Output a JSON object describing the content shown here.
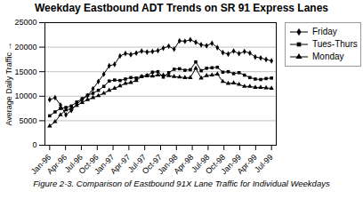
{
  "chart_data": {
    "type": "line",
    "title": "Weekday Eastbound ADT Trends on SR 91 Express Lanes",
    "ylabel": "Average Daily Traffic",
    "caption": "Figure 2-3. Comparison of Eastbound 91X Lane Traffic for Individual Weekdays",
    "x": [
      0,
      0.3414634146,
      0.6829268293,
      1.0243902439,
      1.3658536585,
      1.7073170732,
      2.0487804878,
      2.3902439024,
      2.7317073171,
      3.0731707317,
      3.4146341463,
      3.756097561,
      4.0975609756,
      4.4390243902,
      4.7804878049,
      5.1219512195,
      5.4634146341,
      5.8048780488,
      6.1463414634,
      6.487804878,
      6.8292682927,
      7.1707317073,
      7.512195122,
      7.8536585366,
      8.1951219512,
      8.5365853659,
      8.8780487805,
      9.2195121951,
      9.5609756098,
      9.9024390244,
      10.243902439,
      10.5853658537,
      10.9268292683,
      11.2682926829,
      11.6097560976,
      11.9512195122,
      12.2926829268,
      12.6341463415,
      12.9756097561,
      13.3170731707,
      13.6585365854,
      14
    ],
    "xlim": [
      -0.3,
      14.3
    ],
    "xticks": [
      {
        "value": 0,
        "label": "Jan-96"
      },
      {
        "value": 1,
        "label": "Apr-96"
      },
      {
        "value": 2,
        "label": "Jul-96"
      },
      {
        "value": 3,
        "label": "Oct-96"
      },
      {
        "value": 4,
        "label": "Jan-97"
      },
      {
        "value": 5,
        "label": "Apr-97"
      },
      {
        "value": 6,
        "label": "Jul-97"
      },
      {
        "value": 7,
        "label": "Oct-97"
      },
      {
        "value": 8,
        "label": "Jan-98"
      },
      {
        "value": 9,
        "label": "Apr-98"
      },
      {
        "value": 10,
        "label": "Jul-98"
      },
      {
        "value": 11,
        "label": "Oct-98"
      },
      {
        "value": 12,
        "label": "Jan-99"
      },
      {
        "value": 13,
        "label": "Apr-99"
      },
      {
        "value": 14,
        "label": "Jul-99"
      }
    ],
    "ylim": [
      0,
      25000
    ],
    "yticks": [
      0,
      5000,
      10000,
      15000,
      20000,
      25000
    ],
    "grid": "y",
    "legend": "right",
    "series": [
      {
        "name": "Friday",
        "color": "#000000",
        "marker": "diamond",
        "values": [
          9300,
          9700,
          8200,
          6200,
          7100,
          8400,
          9300,
          10100,
          11500,
          13000,
          14500,
          16200,
          16500,
          18200,
          18700,
          18500,
          18800,
          19200,
          19000,
          19100,
          19300,
          19800,
          20200,
          19600,
          21300,
          21200,
          21500,
          21000,
          20500,
          20300,
          20800,
          19900,
          18900,
          18600,
          19200,
          18700,
          19100,
          18800,
          18000,
          17800,
          17500,
          17200
        ]
      },
      {
        "name": "Tues-Thurs",
        "color": "#000000",
        "marker": "square",
        "values": [
          6000,
          6800,
          7500,
          7700,
          8000,
          8800,
          9500,
          10200,
          10600,
          11200,
          12000,
          13100,
          13300,
          13200,
          13500,
          13800,
          13700,
          14000,
          14200,
          14900,
          15000,
          13900,
          14800,
          15500,
          15600,
          15300,
          15400,
          17000,
          15200,
          15700,
          15800,
          15900,
          14900,
          15000,
          14600,
          14800,
          14300,
          13800,
          13500,
          13400,
          13600,
          13700
        ]
      },
      {
        "name": "Monday",
        "color": "#000000",
        "marker": "triangle",
        "values": [
          3900,
          4800,
          6200,
          7200,
          7500,
          8100,
          8700,
          9300,
          9700,
          10100,
          10600,
          11200,
          11600,
          12100,
          12600,
          12800,
          13200,
          14000,
          14200,
          14100,
          14300,
          14300,
          14200,
          14000,
          13900,
          13800,
          13800,
          15700,
          13700,
          14200,
          14300,
          14500,
          13000,
          12600,
          12700,
          12400,
          12000,
          12000,
          11800,
          11800,
          11700,
          11600
        ]
      }
    ]
  }
}
